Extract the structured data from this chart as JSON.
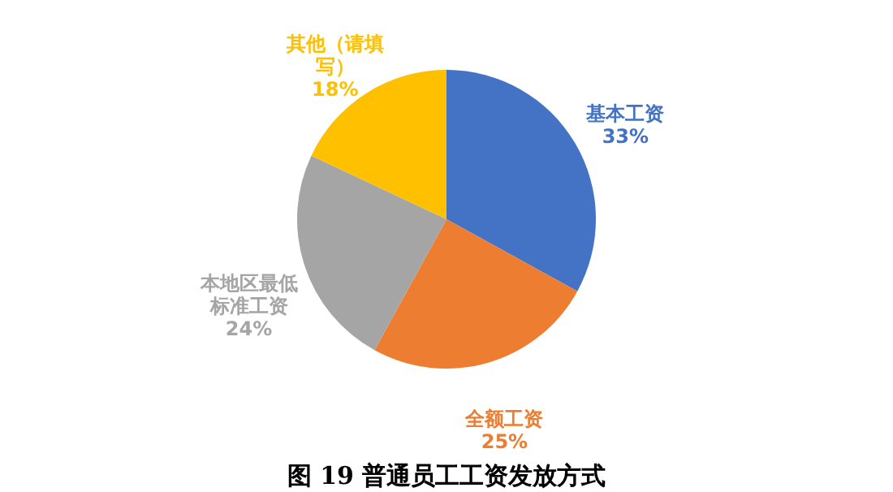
{
  "chart_data": {
    "type": "pie",
    "title": "图 19 普通员工工资发放方式",
    "categories": [
      "基本工资",
      "全额工资",
      "本地区最低标准工资",
      "其他（请填写）"
    ],
    "values": [
      33,
      25,
      24,
      18
    ],
    "value_labels": [
      "33%",
      "25%",
      "24%",
      "18%"
    ],
    "colors": [
      "#4472c4",
      "#ed7d31",
      "#a5a5a5",
      "#ffc000"
    ],
    "legend": false
  }
}
